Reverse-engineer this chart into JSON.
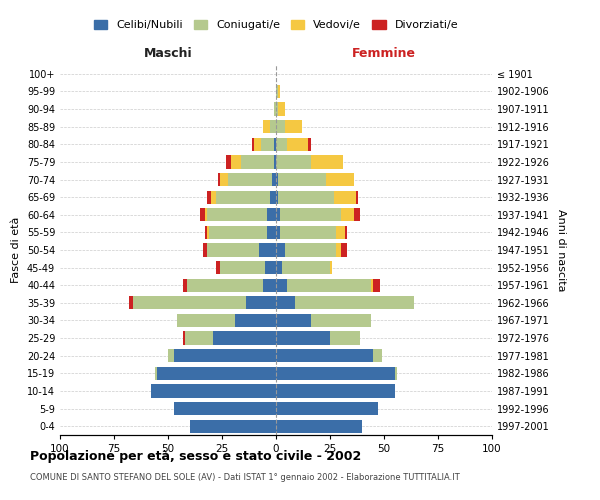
{
  "age_groups": [
    "0-4",
    "5-9",
    "10-14",
    "15-19",
    "20-24",
    "25-29",
    "30-34",
    "35-39",
    "40-44",
    "45-49",
    "50-54",
    "55-59",
    "60-64",
    "65-69",
    "70-74",
    "75-79",
    "80-84",
    "85-89",
    "90-94",
    "95-99",
    "100+"
  ],
  "birth_years": [
    "1997-2001",
    "1992-1996",
    "1987-1991",
    "1982-1986",
    "1977-1981",
    "1972-1976",
    "1967-1971",
    "1962-1966",
    "1957-1961",
    "1952-1956",
    "1947-1951",
    "1942-1946",
    "1937-1941",
    "1932-1936",
    "1927-1931",
    "1922-1926",
    "1917-1921",
    "1912-1916",
    "1907-1911",
    "1902-1906",
    "≤ 1901"
  ],
  "colors": {
    "celibe": "#3B6EA8",
    "coniugato": "#B5C98E",
    "vedovo": "#F5C842",
    "divorziato": "#CC2222"
  },
  "maschi": {
    "celibe": [
      40,
      47,
      58,
      55,
      47,
      29,
      19,
      14,
      6,
      5,
      8,
      4,
      4,
      3,
      2,
      1,
      1,
      0,
      0,
      0,
      0
    ],
    "coniugato": [
      0,
      0,
      0,
      1,
      3,
      13,
      27,
      52,
      35,
      21,
      24,
      27,
      28,
      25,
      20,
      15,
      6,
      3,
      1,
      0,
      0
    ],
    "vedovo": [
      0,
      0,
      0,
      0,
      0,
      0,
      0,
      0,
      0,
      0,
      0,
      1,
      1,
      2,
      4,
      5,
      3,
      3,
      0,
      0,
      0
    ],
    "divorziato": [
      0,
      0,
      0,
      0,
      0,
      1,
      0,
      2,
      2,
      2,
      2,
      1,
      2,
      2,
      1,
      2,
      1,
      0,
      0,
      0,
      0
    ]
  },
  "femmine": {
    "nubile": [
      40,
      47,
      55,
      55,
      45,
      25,
      16,
      9,
      5,
      3,
      4,
      2,
      2,
      1,
      1,
      0,
      0,
      0,
      0,
      0,
      0
    ],
    "coniugata": [
      0,
      0,
      0,
      1,
      4,
      14,
      28,
      55,
      39,
      22,
      24,
      26,
      28,
      26,
      22,
      16,
      5,
      4,
      1,
      1,
      0
    ],
    "vedova": [
      0,
      0,
      0,
      0,
      0,
      0,
      0,
      0,
      1,
      1,
      2,
      4,
      6,
      10,
      13,
      15,
      10,
      8,
      3,
      1,
      0
    ],
    "divorziata": [
      0,
      0,
      0,
      0,
      0,
      0,
      0,
      0,
      3,
      0,
      3,
      1,
      3,
      1,
      0,
      0,
      1,
      0,
      0,
      0,
      0
    ]
  },
  "xlim": 100,
  "title": "Popolazione per età, sesso e stato civile - 2002",
  "subtitle": "COMUNE DI SANTO STEFANO DEL SOLE (AV) - Dati ISTAT 1° gennaio 2002 - Elaborazione TUTTITALIA.IT",
  "ylabel_left": "Fasce di età",
  "ylabel_right": "Anni di nascita",
  "maschi_label": "Maschi",
  "femmine_label": "Femmine",
  "legend_labels": [
    "Celibi/Nubili",
    "Coniugati/e",
    "Vedovi/e",
    "Divorziati/e"
  ],
  "background_color": "#FFFFFF",
  "grid_color": "#CCCCCC",
  "bar_height": 0.75
}
